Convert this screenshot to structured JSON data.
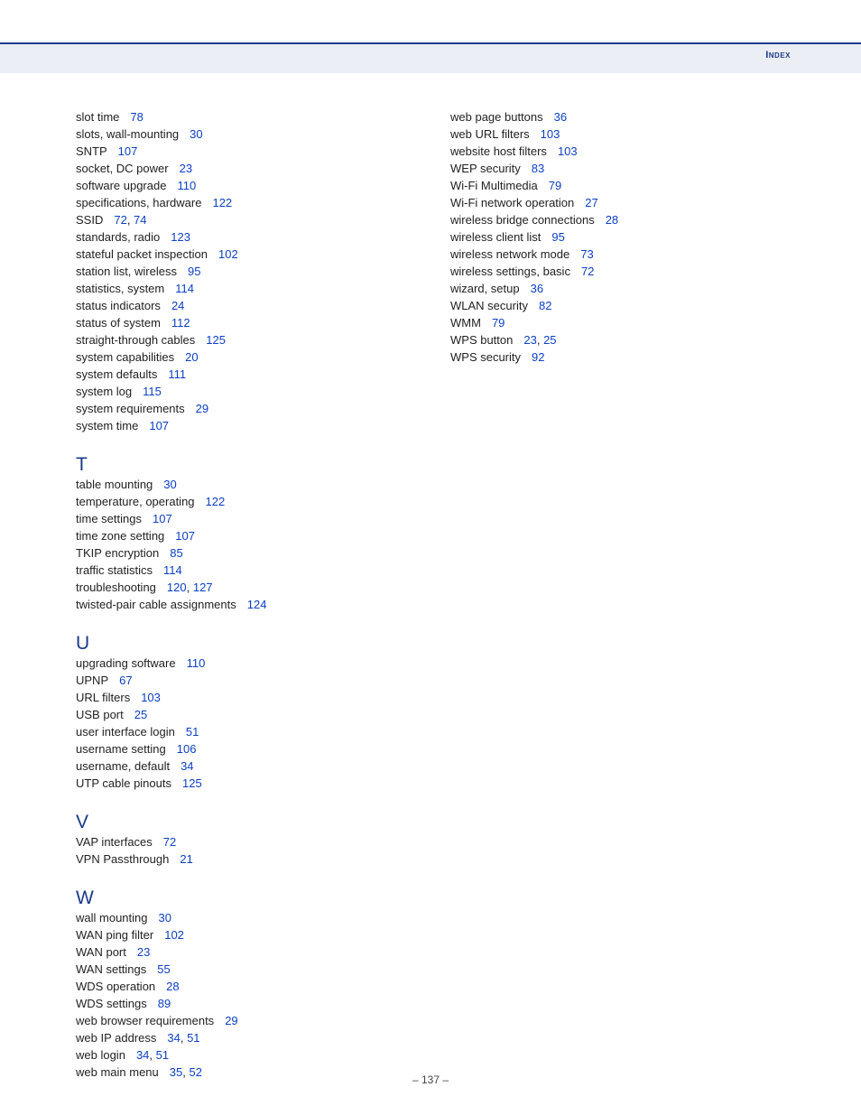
{
  "header": {
    "label": "Index"
  },
  "footer": {
    "text": "– 137 –"
  },
  "colors": {
    "rule": "#1a3a8a",
    "band": "#eceef5",
    "link": "#0b3fc4",
    "text": "#222222"
  },
  "columns": [
    {
      "groups": [
        {
          "letter": null,
          "entries": [
            {
              "term": "slot time",
              "pages": [
                "78"
              ]
            },
            {
              "term": "slots, wall-mounting",
              "pages": [
                "30"
              ]
            },
            {
              "term": "SNTP",
              "pages": [
                "107"
              ]
            },
            {
              "term": "socket, DC power",
              "pages": [
                "23"
              ]
            },
            {
              "term": "software upgrade",
              "pages": [
                "110"
              ]
            },
            {
              "term": "specifications, hardware",
              "pages": [
                "122"
              ]
            },
            {
              "term": "SSID",
              "pages": [
                "72",
                "74"
              ]
            },
            {
              "term": "standards, radio",
              "pages": [
                "123"
              ]
            },
            {
              "term": "stateful packet inspection",
              "pages": [
                "102"
              ]
            },
            {
              "term": "station list, wireless",
              "pages": [
                "95"
              ]
            },
            {
              "term": "statistics, system",
              "pages": [
                "114"
              ]
            },
            {
              "term": "status indicators",
              "pages": [
                "24"
              ]
            },
            {
              "term": "status of system",
              "pages": [
                "112"
              ]
            },
            {
              "term": "straight-through cables",
              "pages": [
                "125"
              ]
            },
            {
              "term": "system capabilities",
              "pages": [
                "20"
              ]
            },
            {
              "term": "system defaults",
              "pages": [
                "111"
              ]
            },
            {
              "term": "system log",
              "pages": [
                "115"
              ]
            },
            {
              "term": "system requirements",
              "pages": [
                "29"
              ]
            },
            {
              "term": "system time",
              "pages": [
                "107"
              ]
            }
          ]
        },
        {
          "letter": "T",
          "entries": [
            {
              "term": "table mounting",
              "pages": [
                "30"
              ]
            },
            {
              "term": "temperature, operating",
              "pages": [
                "122"
              ]
            },
            {
              "term": "time settings",
              "pages": [
                "107"
              ]
            },
            {
              "term": "time zone setting",
              "pages": [
                "107"
              ]
            },
            {
              "term": "TKIP encryption",
              "pages": [
                "85"
              ]
            },
            {
              "term": "traffic statistics",
              "pages": [
                "114"
              ]
            },
            {
              "term": "troubleshooting",
              "pages": [
                "120",
                "127"
              ]
            },
            {
              "term": "twisted-pair cable assignments",
              "pages": [
                "124"
              ]
            }
          ]
        },
        {
          "letter": "U",
          "entries": [
            {
              "term": "upgrading software",
              "pages": [
                "110"
              ]
            },
            {
              "term": "UPNP",
              "pages": [
                "67"
              ]
            },
            {
              "term": "URL filters",
              "pages": [
                "103"
              ]
            },
            {
              "term": "USB port",
              "pages": [
                "25"
              ]
            },
            {
              "term": "user interface login",
              "pages": [
                "51"
              ]
            },
            {
              "term": "username setting",
              "pages": [
                "106"
              ]
            },
            {
              "term": "username, default",
              "pages": [
                "34"
              ]
            },
            {
              "term": "UTP cable pinouts",
              "pages": [
                "125"
              ]
            }
          ]
        },
        {
          "letter": "V",
          "entries": [
            {
              "term": "VAP interfaces",
              "pages": [
                "72"
              ]
            },
            {
              "term": "VPN Passthrough",
              "pages": [
                "21"
              ]
            }
          ]
        },
        {
          "letter": "W",
          "entries": [
            {
              "term": "wall mounting",
              "pages": [
                "30"
              ]
            },
            {
              "term": "WAN ping filter",
              "pages": [
                "102"
              ]
            },
            {
              "term": "WAN port",
              "pages": [
                "23"
              ]
            },
            {
              "term": "WAN settings",
              "pages": [
                "55"
              ]
            },
            {
              "term": "WDS operation",
              "pages": [
                "28"
              ]
            },
            {
              "term": "WDS settings",
              "pages": [
                "89"
              ]
            },
            {
              "term": "web browser requirements",
              "pages": [
                "29"
              ]
            },
            {
              "term": "web IP address",
              "pages": [
                "34",
                "51"
              ]
            },
            {
              "term": "web login",
              "pages": [
                "34",
                "51"
              ]
            },
            {
              "term": "web main menu",
              "pages": [
                "35",
                "52"
              ]
            }
          ]
        }
      ]
    },
    {
      "groups": [
        {
          "letter": null,
          "entries": [
            {
              "term": "web page buttons",
              "pages": [
                "36"
              ]
            },
            {
              "term": "web URL filters",
              "pages": [
                "103"
              ]
            },
            {
              "term": "website host filters",
              "pages": [
                "103"
              ]
            },
            {
              "term": "WEP security",
              "pages": [
                "83"
              ]
            },
            {
              "term": "Wi-Fi Multimedia",
              "pages": [
                "79"
              ]
            },
            {
              "term": "Wi-Fi network operation",
              "pages": [
                "27"
              ]
            },
            {
              "term": "wireless bridge connections",
              "pages": [
                "28"
              ]
            },
            {
              "term": "wireless client list",
              "pages": [
                "95"
              ]
            },
            {
              "term": "wireless network mode",
              "pages": [
                "73"
              ]
            },
            {
              "term": "wireless settings, basic",
              "pages": [
                "72"
              ]
            },
            {
              "term": "wizard, setup",
              "pages": [
                "36"
              ]
            },
            {
              "term": "WLAN security",
              "pages": [
                "82"
              ]
            },
            {
              "term": "WMM",
              "pages": [
                "79"
              ]
            },
            {
              "term": "WPS button",
              "pages": [
                "23",
                "25"
              ]
            },
            {
              "term": "WPS security",
              "pages": [
                "92"
              ]
            }
          ]
        }
      ]
    }
  ]
}
